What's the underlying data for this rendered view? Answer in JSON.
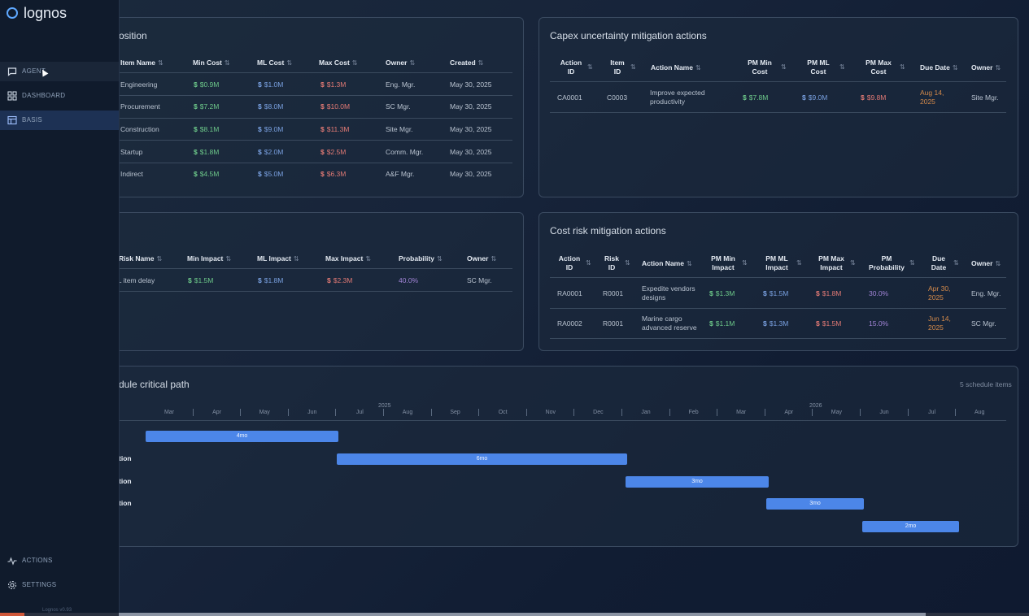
{
  "app": {
    "name": "lognos",
    "version": "Lognos v0.93"
  },
  "sidebar": {
    "items": [
      {
        "label": "AGENT",
        "icon": "chat-icon"
      },
      {
        "label": "DASHBOARD",
        "icon": "dashboard-grid-icon"
      },
      {
        "label": "BASIS",
        "icon": "table-icon"
      }
    ],
    "bottom": [
      {
        "label": "ACTIONS",
        "icon": "activity-icon"
      },
      {
        "label": "SETTINGS",
        "icon": "gear-icon"
      }
    ]
  },
  "capex_table": {
    "title": "osition",
    "headers": [
      "Item Name",
      "Min Cost",
      "ML Cost",
      "Max Cost",
      "Owner",
      "Created"
    ],
    "rows": [
      {
        "name": "Engineering",
        "min": "$0.9M",
        "ml": "$1.0M",
        "max": "$1.3M",
        "owner": "Eng. Mgr.",
        "created": "May 30, 2025"
      },
      {
        "name": "Procurement",
        "min": "$7.2M",
        "ml": "$8.0M",
        "max": "$10.0M",
        "owner": "SC Mgr.",
        "created": "May 30, 2025"
      },
      {
        "name": "Construction",
        "min": "$8.1M",
        "ml": "$9.0M",
        "max": "$11.3M",
        "owner": "Site Mgr.",
        "created": "May 30, 2025"
      },
      {
        "name": "Startup",
        "min": "$1.8M",
        "ml": "$2.0M",
        "max": "$2.5M",
        "owner": "Comm. Mgr.",
        "created": "May 30, 2025"
      },
      {
        "name": "Indirect",
        "min": "$4.5M",
        "ml": "$5.0M",
        "max": "$6.3M",
        "owner": "A&F Mgr.",
        "created": "May 30, 2025"
      }
    ]
  },
  "capex_actions": {
    "title": "Capex uncertainty mitigation actions",
    "headers": [
      "Action ID",
      "Item ID",
      "Action Name",
      "PM Min Cost",
      "PM ML Cost",
      "PM Max Cost",
      "Due Date",
      "Owner"
    ],
    "rows": [
      {
        "action_id": "CA0001",
        "item_id": "C0003",
        "name": "Improve expected productivity",
        "min": "$7.8M",
        "ml": "$9.0M",
        "max": "$9.8M",
        "due": "Aug 14, 2025",
        "owner": "Site Mgr."
      }
    ]
  },
  "risk_table": {
    "headers": [
      "Risk Name",
      "Min Impact",
      "ML Impact",
      "Max Impact",
      "Probability",
      "Owner"
    ],
    "rows": [
      {
        "name": "LL item delay",
        "min": "$1.5M",
        "ml": "$1.8M",
        "max": "$2.3M",
        "prob": "40.0%",
        "owner": "SC Mgr."
      }
    ]
  },
  "risk_actions": {
    "title": "Cost risk mitigation actions",
    "headers": [
      "Action ID",
      "Risk ID",
      "Action Name",
      "PM Min Impact",
      "PM ML Impact",
      "PM Max Impact",
      "PM Probability",
      "Due Date",
      "Owner"
    ],
    "rows": [
      {
        "action_id": "RA0001",
        "risk_id": "R0001",
        "name": "Expedite vendors designs",
        "min": "$1.3M",
        "ml": "$1.5M",
        "max": "$1.8M",
        "prob": "30.0%",
        "due": "Apr 30, 2025",
        "owner": "Eng. Mgr."
      },
      {
        "action_id": "RA0002",
        "risk_id": "R0001",
        "name": "Marine cargo advanced reserve",
        "min": "$1.1M",
        "ml": "$1.3M",
        "max": "$1.5M",
        "prob": "15.0%",
        "due": "Jun 14, 2025",
        "owner": "SC Mgr."
      }
    ]
  },
  "schedule": {
    "title": "dule critical path",
    "count": "5 schedule items",
    "year_labels": [
      "2025",
      "2026"
    ],
    "months": [
      "Mar",
      "Apr",
      "May",
      "Jun",
      "Jul",
      "Aug",
      "Sep",
      "Oct",
      "Nov",
      "Dec",
      "Jan",
      "Feb",
      "Mar",
      "Apr",
      "May",
      "Jun",
      "Jul",
      "Aug"
    ],
    "tasks": [
      {
        "label": "",
        "duration": "4mo"
      },
      {
        "label": "tion",
        "duration": "6mo"
      },
      {
        "label": "tion",
        "duration": "3mo"
      },
      {
        "label": "tion",
        "duration": "3mo"
      },
      {
        "label": "",
        "duration": "2mo"
      }
    ]
  },
  "colors": {
    "accent": "#4c86e8",
    "min": "#6dc98a",
    "ml": "#79a0e0",
    "max": "#e27a75",
    "prob": "#a385d8",
    "due": "#d48a4a"
  }
}
